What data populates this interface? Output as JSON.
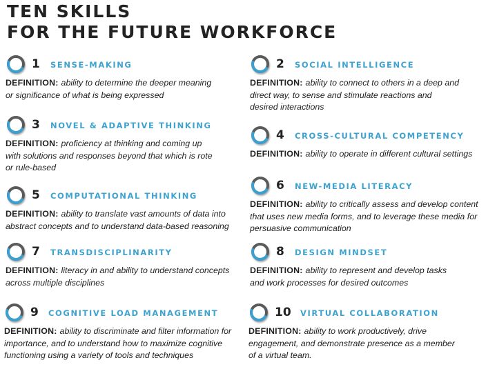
{
  "title": {
    "line1": "TEN SKILLS",
    "line2": "FOR THE FUTURE WORKFORCE"
  },
  "definition_label": "DEFINITION:",
  "ring_colors": {
    "ring": "#5a5a5a",
    "accent": "#3aa0d0",
    "skill_name": "#3fa2cf"
  },
  "skills": [
    {
      "number": "1",
      "name": "SENSE-MAKING",
      "definition": [
        "ability to determine the deeper meaning",
        "or significance of what is being expressed"
      ]
    },
    {
      "number": "2",
      "name": "SOCIAL INTELLIGENCE",
      "definition": [
        "ability to connect to others in a deep and",
        "direct way, to sense and stimulate reactions and",
        "desired interactions"
      ]
    },
    {
      "number": "3",
      "name": "NOVEL & ADAPTIVE THINKING",
      "definition": [
        "proficiency at thinking and coming up",
        "with solutions and responses beyond that which is rote",
        "or rule-based"
      ]
    },
    {
      "number": "4",
      "name": "CROSS-CULTURAL COMPETENCY",
      "definition": [
        "ability to operate in different cultural settings"
      ]
    },
    {
      "number": "5",
      "name": "COMPUTATIONAL THINKING",
      "definition": [
        "ability to translate vast amounts of data into",
        "abstract concepts and to understand data-based reasoning"
      ]
    },
    {
      "number": "6",
      "name": "NEW-MEDIA LITERACY",
      "definition": [
        "ability to critically assess and develop content",
        "that uses new media forms, and to leverage these media for",
        "persuasive communication"
      ]
    },
    {
      "number": "7",
      "name": "TRANSDISCIPLINARITY",
      "definition": [
        "literacy in and ability to understand concepts",
        "across multiple disciplines"
      ]
    },
    {
      "number": "8",
      "name": "DESIGN MINDSET",
      "definition": [
        "ability to represent and develop tasks",
        "and work processes for desired outcomes"
      ]
    },
    {
      "number": "9",
      "name": "COGNITIVE LOAD MANAGEMENT",
      "definition": [
        "ability to discriminate and filter information for",
        "importance, and to understand how to maximize cognitive",
        "functioning using a variety of tools and techniques"
      ]
    },
    {
      "number": "10",
      "name": "VIRTUAL COLLABORATION",
      "definition": [
        "ability to work productively, drive",
        "engagement, and demonstrate presence as a member",
        "of a virtual team."
      ]
    }
  ]
}
